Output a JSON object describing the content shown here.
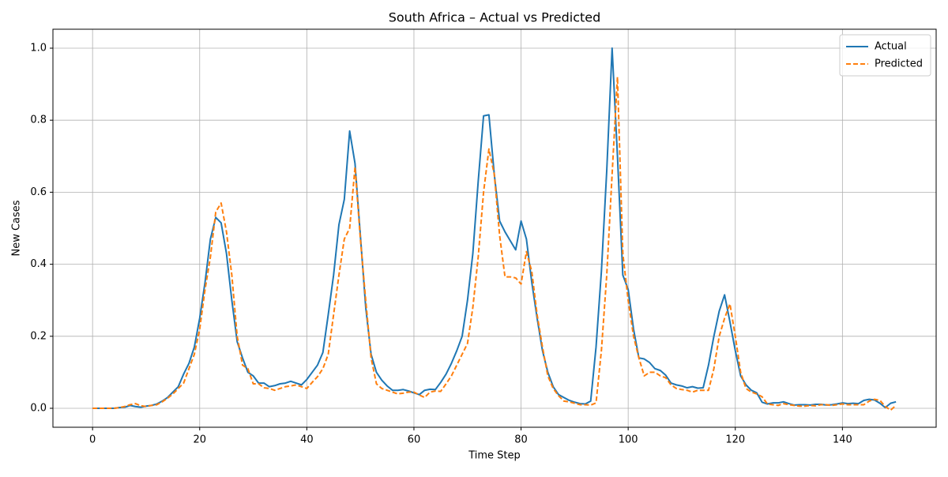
{
  "chart_data": {
    "type": "line",
    "title": "South Africa – Actual vs Predicted",
    "x_label": "Time Step",
    "y_label": "New Cases",
    "x": [
      0,
      1,
      2,
      3,
      4,
      5,
      6,
      7,
      8,
      9,
      10,
      11,
      12,
      13,
      14,
      15,
      16,
      17,
      18,
      19,
      20,
      21,
      22,
      23,
      24,
      25,
      26,
      27,
      28,
      29,
      30,
      31,
      32,
      33,
      34,
      35,
      36,
      37,
      38,
      39,
      40,
      41,
      42,
      43,
      44,
      45,
      46,
      47,
      48,
      49,
      50,
      51,
      52,
      53,
      54,
      55,
      56,
      57,
      58,
      59,
      60,
      61,
      62,
      63,
      64,
      65,
      66,
      67,
      68,
      69,
      70,
      71,
      72,
      73,
      74,
      75,
      76,
      77,
      78,
      79,
      80,
      81,
      82,
      83,
      84,
      85,
      86,
      87,
      88,
      89,
      90,
      91,
      92,
      93,
      94,
      95,
      96,
      97,
      98,
      99,
      100,
      101,
      102,
      103,
      104,
      105,
      106,
      107,
      108,
      109,
      110,
      111,
      112,
      113,
      114,
      115,
      116,
      117,
      118,
      119,
      120,
      121,
      122,
      123,
      124,
      125,
      126,
      127,
      128,
      129,
      130,
      131,
      132,
      133,
      134,
      135,
      136,
      137,
      138,
      139,
      140,
      141,
      142,
      143,
      144,
      145,
      146,
      147,
      148,
      149,
      150
    ],
    "series": [
      {
        "name": "Actual",
        "color": "#1f77b4",
        "linestyle": "solid",
        "values": [
          0,
          0,
          0,
          0,
          0,
          0.002,
          0.003,
          0.008,
          0.005,
          0.003,
          0.006,
          0.008,
          0.012,
          0.02,
          0.03,
          0.045,
          0.06,
          0.095,
          0.125,
          0.17,
          0.25,
          0.35,
          0.47,
          0.53,
          0.515,
          0.43,
          0.3,
          0.185,
          0.14,
          0.1,
          0.09,
          0.07,
          0.07,
          0.06,
          0.063,
          0.068,
          0.07,
          0.075,
          0.07,
          0.065,
          0.08,
          0.1,
          0.12,
          0.155,
          0.26,
          0.37,
          0.51,
          0.58,
          0.77,
          0.68,
          0.48,
          0.28,
          0.15,
          0.1,
          0.078,
          0.062,
          0.05,
          0.05,
          0.052,
          0.048,
          0.043,
          0.038,
          0.05,
          0.053,
          0.052,
          0.072,
          0.095,
          0.125,
          0.16,
          0.2,
          0.3,
          0.43,
          0.63,
          0.812,
          0.815,
          0.65,
          0.52,
          0.49,
          0.465,
          0.44,
          0.52,
          0.47,
          0.35,
          0.25,
          0.16,
          0.1,
          0.06,
          0.038,
          0.03,
          0.022,
          0.017,
          0.013,
          0.012,
          0.02,
          0.17,
          0.38,
          0.66,
          1.0,
          0.7,
          0.37,
          0.33,
          0.22,
          0.14,
          0.137,
          0.127,
          0.11,
          0.105,
          0.092,
          0.07,
          0.065,
          0.062,
          0.057,
          0.06,
          0.056,
          0.057,
          0.12,
          0.2,
          0.27,
          0.315,
          0.24,
          0.16,
          0.09,
          0.065,
          0.05,
          0.043,
          0.017,
          0.012,
          0.015,
          0.015,
          0.018,
          0.013,
          0.009,
          0.01,
          0.01,
          0.009,
          0.011,
          0.011,
          0.009,
          0.01,
          0.012,
          0.015,
          0.013,
          0.014,
          0.013,
          0.022,
          0.025,
          0.023,
          0.014,
          0.002,
          0.014,
          0.018
        ]
      },
      {
        "name": "Predicted",
        "color": "#ff7f0e",
        "linestyle": "dashed",
        "values": [
          0,
          0,
          0,
          0,
          0,
          0.002,
          0.005,
          0.01,
          0.013,
          0.007,
          0.005,
          0.008,
          0.01,
          0.018,
          0.028,
          0.04,
          0.055,
          0.07,
          0.11,
          0.15,
          0.22,
          0.33,
          0.42,
          0.545,
          0.57,
          0.49,
          0.37,
          0.2,
          0.12,
          0.11,
          0.068,
          0.068,
          0.057,
          0.055,
          0.05,
          0.055,
          0.06,
          0.062,
          0.065,
          0.06,
          0.055,
          0.072,
          0.088,
          0.11,
          0.15,
          0.26,
          0.37,
          0.47,
          0.5,
          0.67,
          0.47,
          0.3,
          0.14,
          0.068,
          0.055,
          0.05,
          0.045,
          0.04,
          0.042,
          0.045,
          0.045,
          0.037,
          0.03,
          0.045,
          0.048,
          0.047,
          0.068,
          0.09,
          0.12,
          0.15,
          0.18,
          0.28,
          0.42,
          0.6,
          0.72,
          0.65,
          0.48,
          0.365,
          0.365,
          0.362,
          0.345,
          0.435,
          0.38,
          0.26,
          0.17,
          0.09,
          0.055,
          0.035,
          0.02,
          0.018,
          0.014,
          0.01,
          0.01,
          0.009,
          0.015,
          0.16,
          0.37,
          0.65,
          0.92,
          0.43,
          0.3,
          0.2,
          0.14,
          0.09,
          0.1,
          0.1,
          0.09,
          0.085,
          0.065,
          0.055,
          0.052,
          0.05,
          0.045,
          0.05,
          0.05,
          0.05,
          0.11,
          0.2,
          0.25,
          0.29,
          0.2,
          0.1,
          0.055,
          0.045,
          0.04,
          0.032,
          0.012,
          0.01,
          0.008,
          0.013,
          0.01,
          0.008,
          0.006,
          0.006,
          0.008,
          0.007,
          0.01,
          0.01,
          0.008,
          0.01,
          0.012,
          0.01,
          0.01,
          0.01,
          0.01,
          0.02,
          0.025,
          0.022,
          0.005,
          -0.005,
          0.008
        ]
      }
    ],
    "xlim": [
      -7.4,
      157.5
    ],
    "ylim": [
      -0.0526,
      1.0526
    ],
    "xticks": [
      0,
      20,
      40,
      60,
      80,
      100,
      120,
      140
    ],
    "yticks": [
      {
        "value": 0,
        "label": "0.0"
      },
      0.2,
      0.4,
      0.6,
      0.8,
      {
        "value": 1,
        "label": "1.0"
      }
    ],
    "grid": true,
    "legend": "upper right"
  }
}
